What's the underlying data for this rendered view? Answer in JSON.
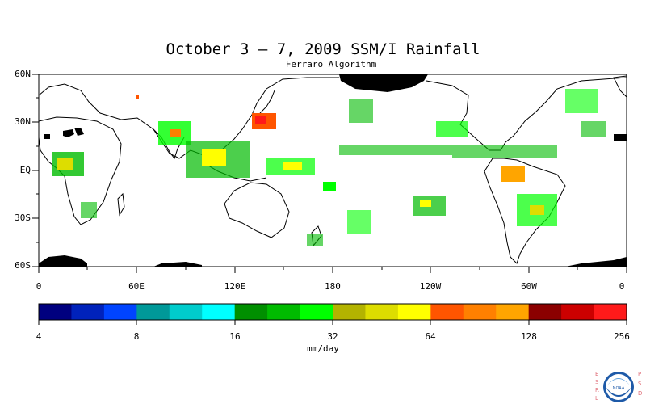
{
  "title": "October 3 – 7, 2009 SSM/I Rainfall",
  "subtitle": "Ferraro Algorithm",
  "lat_labels": [
    "60N",
    "30N",
    "EQ",
    "30S",
    "60S"
  ],
  "lon_labels": [
    "0",
    "60E",
    "120E",
    "180",
    "120W",
    "60W",
    "0"
  ],
  "colorbar": {
    "units": "mm/day",
    "tick_labels": [
      "4",
      "8",
      "16",
      "32",
      "64",
      "128",
      "256"
    ],
    "colors": [
      "#00007f",
      "#0022bb",
      "#0044ff",
      "#009999",
      "#00cccc",
      "#00ffff",
      "#008f00",
      "#00bb00",
      "#00ff00",
      "#b3b300",
      "#dddd00",
      "#ffff00",
      "#ff5500",
      "#ff8000",
      "#ffa500",
      "#8b0000",
      "#cc0000",
      "#ff1a1a"
    ]
  },
  "logo": {
    "side_left": "ESRL",
    "side_right": "PSD",
    "badge": "NOAA"
  }
}
